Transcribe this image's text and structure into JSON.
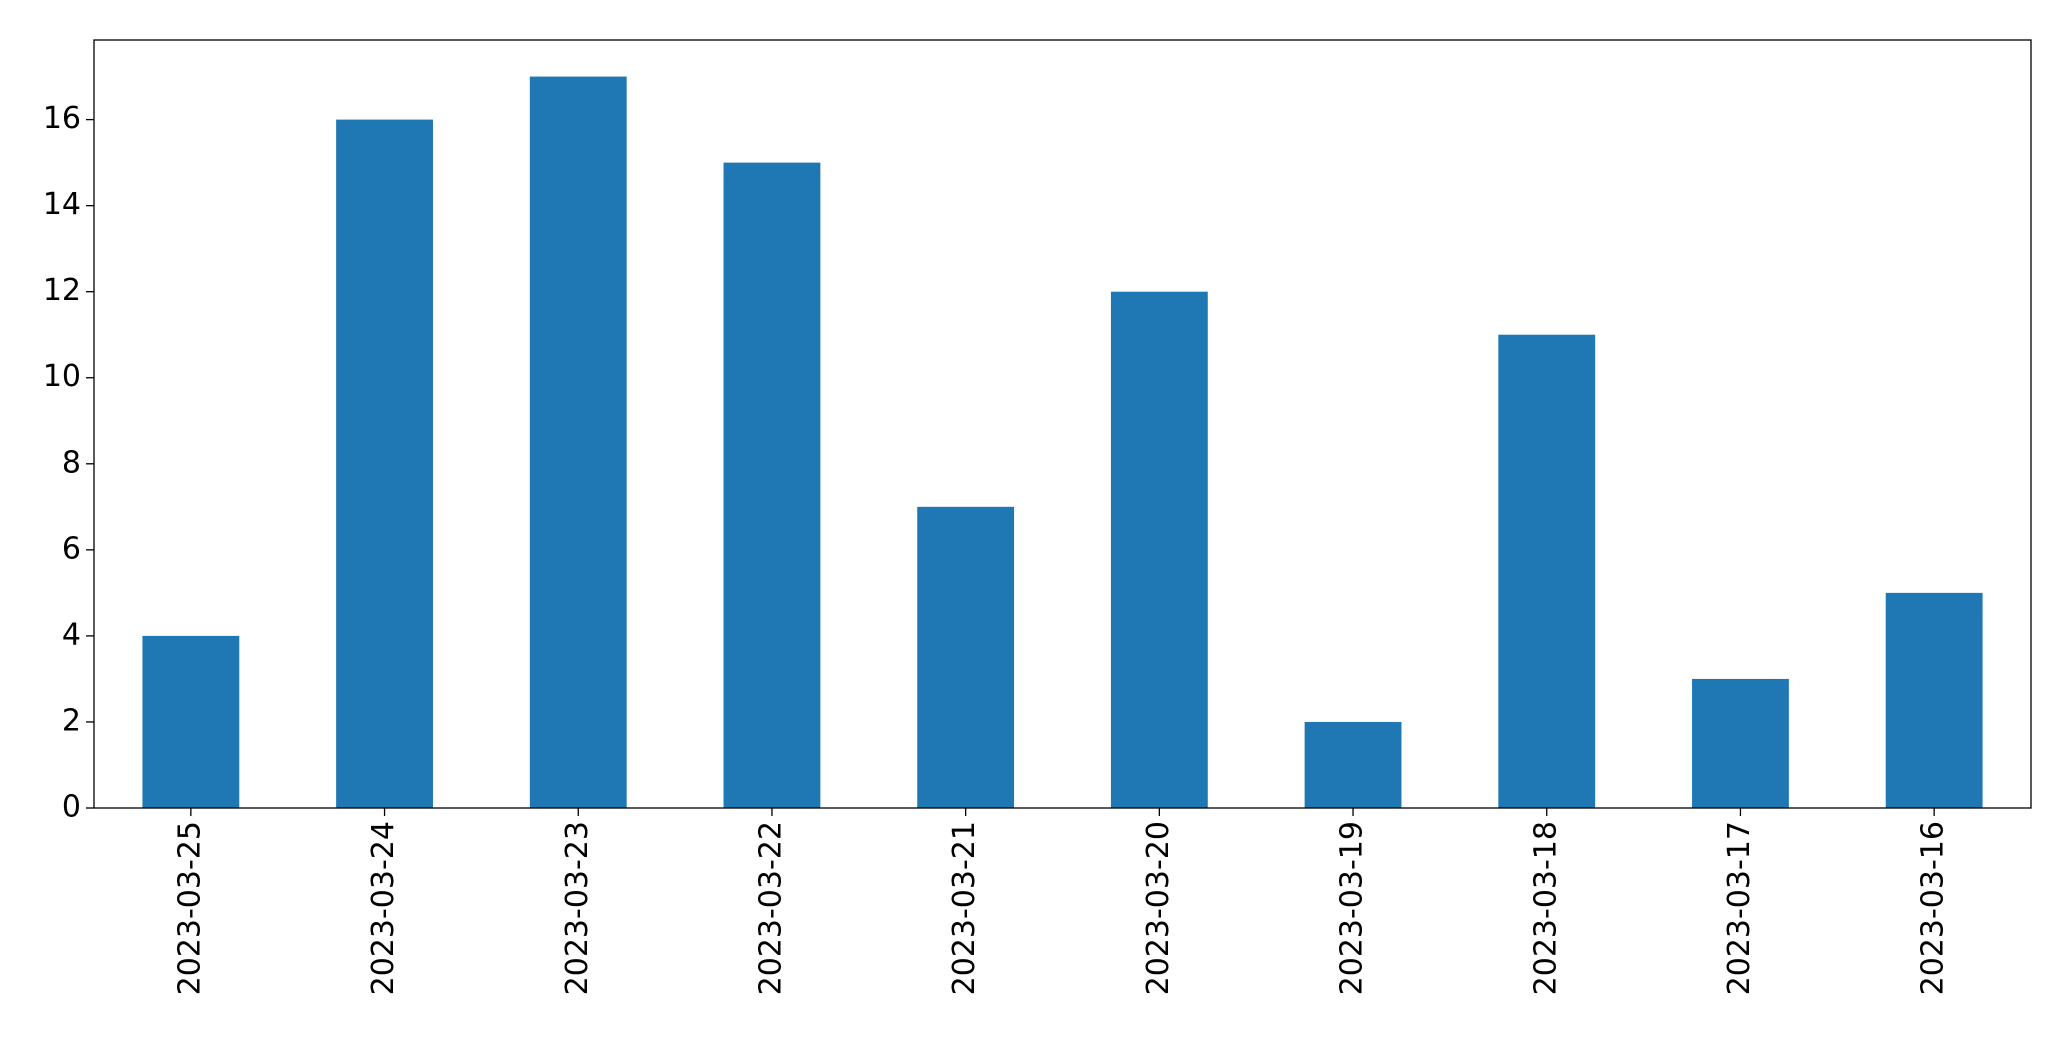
{
  "chart_data": {
    "type": "bar",
    "categories": [
      "2023-03-25",
      "2023-03-24",
      "2023-03-23",
      "2023-03-22",
      "2023-03-21",
      "2023-03-20",
      "2023-03-19",
      "2023-03-18",
      "2023-03-17",
      "2023-03-16"
    ],
    "values": [
      4,
      16,
      17,
      15,
      7,
      12,
      2,
      11,
      3,
      5
    ],
    "color": "#1f77b4",
    "ylim": [
      0,
      17.85
    ],
    "yticks": [
      0,
      2,
      4,
      6,
      8,
      10,
      12,
      14,
      16
    ],
    "grid": false
  }
}
